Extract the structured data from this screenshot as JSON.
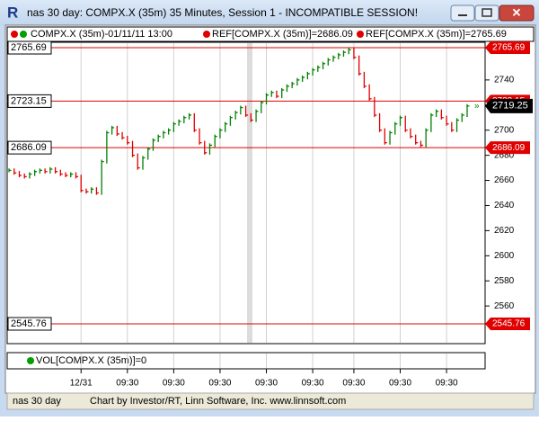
{
  "window": {
    "title": "nas 30 day: COMPX.X (35m) 35 Minutes, Session 1 - INCOMPATIBLE SESSION!"
  },
  "legend": {
    "symbol": "COMPX.X (35m)-01/11/11 13:00",
    "ref1": "REF[COMPX.X (35m)]=2686.09",
    "ref2": "REF[COMPX.X (35m)]=2765.69"
  },
  "volume": {
    "label": "VOL[COMPX.X (35m)]=0"
  },
  "status": {
    "left": "nas 30 day",
    "right": "Chart by Investor/RT, Linn Software, Inc. www.linnsoft.com"
  },
  "chart_data": {
    "type": "stock",
    "categories": [
      null,
      null,
      null,
      null,
      null,
      null,
      null,
      null,
      null,
      null,
      null,
      null,
      null,
      null,
      "12/31",
      null,
      null,
      null,
      null,
      null,
      null,
      null,
      null,
      "09:30",
      null,
      null,
      null,
      null,
      null,
      null,
      null,
      null,
      "09:30",
      null,
      null,
      null,
      null,
      null,
      null,
      null,
      null,
      "09:30",
      null,
      null,
      null,
      null,
      null,
      null,
      null,
      null,
      "09:30",
      null,
      null,
      null,
      null,
      null,
      null,
      null,
      null,
      "09:30",
      null,
      null,
      null,
      null,
      null,
      null,
      null,
      "09:30",
      null,
      null,
      null,
      null,
      null,
      null,
      null,
      null,
      "09:30",
      null,
      null,
      null,
      null,
      null,
      null,
      null,
      null,
      "09:30",
      null,
      null,
      null,
      null
    ],
    "values": [
      2668,
      2666,
      2664,
      2663,
      2665,
      2667,
      2668,
      2667,
      2669,
      2667,
      2665,
      2664,
      2665,
      2663,
      2652,
      2651,
      2653,
      2650,
      2675,
      2698,
      2702,
      2697,
      2694,
      2690,
      2680,
      2670,
      2678,
      2685,
      2692,
      2695,
      2698,
      2700,
      2705,
      2707,
      2710,
      2712,
      2700,
      2690,
      2682,
      2688,
      2695,
      2700,
      2705,
      2710,
      2714,
      2718,
      2712,
      2708,
      2715,
      2722,
      2728,
      2730,
      2727,
      2732,
      2735,
      2737,
      2740,
      2742,
      2745,
      2748,
      2750,
      2753,
      2756,
      2758,
      2760,
      2762,
      2764,
      2758,
      2745,
      2735,
      2725,
      2712,
      2700,
      2690,
      2698,
      2705,
      2710,
      2700,
      2695,
      2690,
      2688,
      2700,
      2712,
      2715,
      2710,
      2705,
      2700,
      2708,
      2712,
      2719.25
    ],
    "up_color": "#008000",
    "down_color": "#e00000",
    "ylim": [
      2530,
      2770
    ],
    "yticks": [
      2560,
      2580,
      2600,
      2620,
      2640,
      2660,
      2680,
      2700,
      2720,
      2740
    ],
    "ref_lines": [
      2765.69,
      2723.15,
      2686.09,
      2545.76
    ],
    "ref_color": "#e00000",
    "last_value": 2719.25,
    "grid": true
  }
}
